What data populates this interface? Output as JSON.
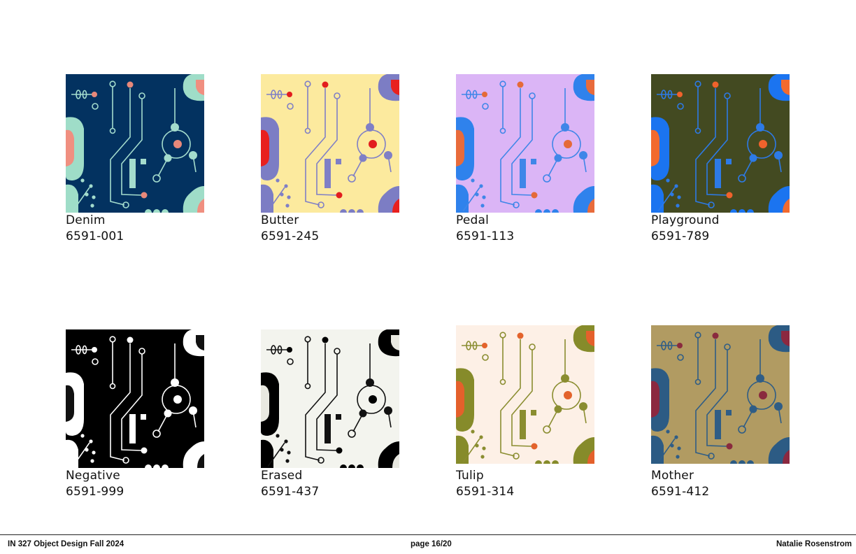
{
  "swatches": [
    {
      "name": "Denim",
      "code": "6591-001",
      "colors": {
        "bg": "#033260",
        "line": "#a4dccd",
        "accent": "#e8887a",
        "blob": "#9fddc8",
        "inner": "#f08f80"
      }
    },
    {
      "name": "Butter",
      "code": "6591-245",
      "colors": {
        "bg": "#fcea9e",
        "line": "#7f7fc6",
        "accent": "#e21d1e",
        "blob": "#7c7dc4",
        "inner": "#e8201e"
      }
    },
    {
      "name": "Pedal",
      "code": "6591-113",
      "colors": {
        "bg": "#dbb5f6",
        "line": "#3f86e8",
        "accent": "#e56a38",
        "blob": "#2f82ec",
        "inner": "#e86b3b"
      }
    },
    {
      "name": "Playground",
      "code": "6591-789",
      "colors": {
        "bg": "#434a21",
        "line": "#2d7ae6",
        "accent": "#f0622c",
        "blob": "#1b74f0",
        "inner": "#f26a2e"
      }
    },
    {
      "name": "Negative",
      "code": "6591-999",
      "colors": {
        "bg": "#000000",
        "line": "#ffffff",
        "accent": "#ffffff",
        "blob": "#ffffff",
        "inner": "#111111"
      }
    },
    {
      "name": "Erased",
      "code": "6591-437",
      "colors": {
        "bg": "#f3f4ee",
        "line": "#111111",
        "accent": "#000000",
        "blob": "#000000",
        "inner": "#e8e8e0"
      }
    },
    {
      "name": "Tulip",
      "code": "6591-314",
      "colors": {
        "bg": "#fdf0e6",
        "line": "#8a8d30",
        "accent": "#e3632c",
        "blob": "#868b2a",
        "inner": "#e4602b"
      }
    },
    {
      "name": "Mother",
      "code": "6591-412",
      "colors": {
        "bg": "#b19b62",
        "line": "#2f5d86",
        "accent": "#8a2a3e",
        "blob": "#2c5b84",
        "inner": "#8b2840"
      }
    }
  ],
  "footer": {
    "left": "IN 327 Object Design Fall 2024",
    "center": "page 16/20",
    "right": "Natalie Rosenstrom"
  }
}
